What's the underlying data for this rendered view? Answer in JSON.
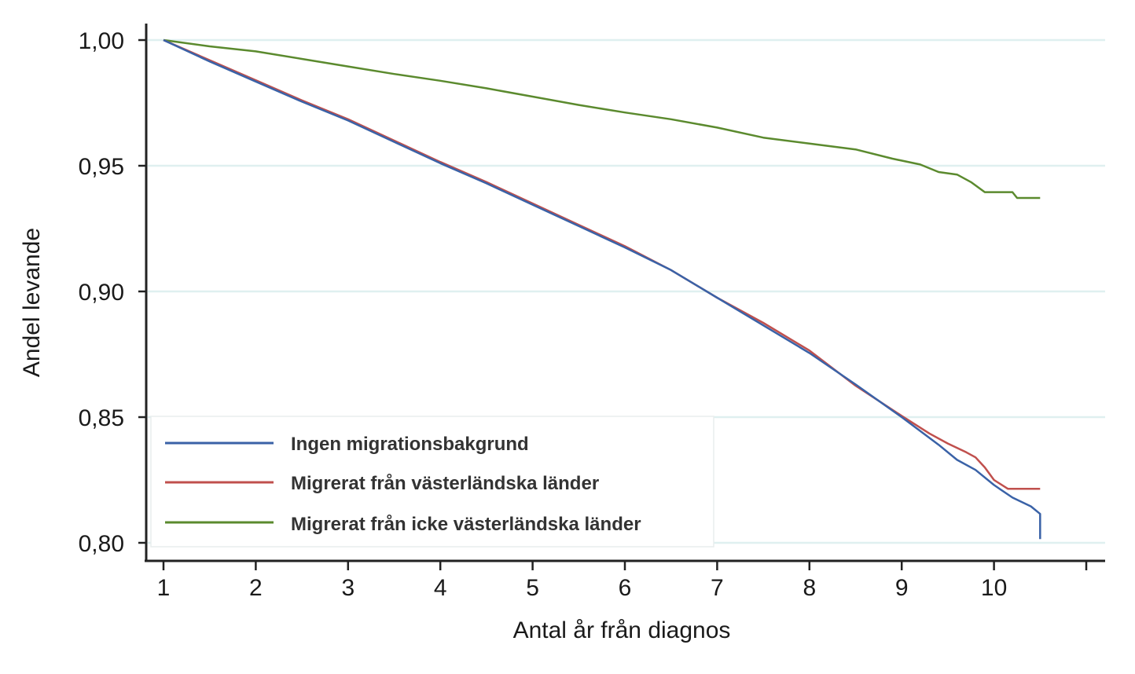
{
  "chart_data": {
    "type": "line",
    "title": "",
    "xlabel": "Antal år från diagnos",
    "ylabel": "Andel levande",
    "xlim": [
      0.95,
      11.2
    ],
    "ylim": [
      0.793,
      1.008
    ],
    "x_ticks": [
      1,
      2,
      3,
      4,
      5,
      6,
      7,
      8,
      9,
      10,
      11
    ],
    "x_tick_labels": [
      "1",
      "2",
      "3",
      "4",
      "5",
      "6",
      "7",
      "8",
      "9",
      "10",
      ""
    ],
    "y_ticks": [
      0.8,
      0.85,
      0.9,
      0.95,
      1.0
    ],
    "y_tick_labels": [
      "0,80",
      "0,85",
      "0,90",
      "0,95",
      "1,00"
    ],
    "grid": true,
    "legend_position": "bottom-left",
    "colors": {
      "Ingen migrationsbakgrund": "#3a62a7",
      "Migrerat från västerländska länder": "#c0504d",
      "Migrerat från icke västerländska länder": "#5b8a2e",
      "grid": "#dff0f0",
      "axis": "#222222"
    },
    "series": [
      {
        "name": "Ingen migrationsbakgrund",
        "x": [
          1.0,
          1.5,
          2.0,
          2.5,
          3.0,
          3.5,
          4.0,
          4.5,
          5.0,
          5.5,
          6.0,
          6.5,
          7.0,
          7.5,
          8.0,
          8.5,
          9.0,
          9.4,
          9.6,
          9.8,
          10.0,
          10.2,
          10.4,
          10.5,
          10.5
        ],
        "y": [
          1.0,
          0.9915,
          0.9835,
          0.9755,
          0.968,
          0.9595,
          0.951,
          0.943,
          0.9345,
          0.926,
          0.9175,
          0.9085,
          0.8975,
          0.8865,
          0.8755,
          0.863,
          0.85,
          0.839,
          0.833,
          0.829,
          0.823,
          0.818,
          0.8145,
          0.8115,
          0.8015
        ]
      },
      {
        "name": "Migrerat från västerländska länder",
        "x": [
          1.0,
          1.5,
          2.0,
          2.5,
          3.0,
          3.5,
          4.0,
          4.5,
          5.0,
          5.5,
          6.0,
          6.5,
          7.0,
          7.5,
          8.0,
          8.5,
          9.0,
          9.3,
          9.5,
          9.7,
          9.8,
          9.9,
          10.0,
          10.15,
          10.5
        ],
        "y": [
          1.0,
          0.992,
          0.984,
          0.976,
          0.9685,
          0.96,
          0.9515,
          0.9435,
          0.935,
          0.9265,
          0.918,
          0.9085,
          0.8975,
          0.8875,
          0.8765,
          0.8625,
          0.8505,
          0.8435,
          0.8395,
          0.836,
          0.834,
          0.83,
          0.825,
          0.8215,
          0.8215
        ]
      },
      {
        "name": "Migrerat från icke västerländska länder",
        "x": [
          1.0,
          1.5,
          2.0,
          2.5,
          3.0,
          3.5,
          4.0,
          4.5,
          5.0,
          5.5,
          6.0,
          6.5,
          7.0,
          7.5,
          8.0,
          8.5,
          8.9,
          9.2,
          9.4,
          9.6,
          9.75,
          9.9,
          10.2,
          10.25,
          10.5
        ],
        "y": [
          1.0,
          0.9975,
          0.9955,
          0.9925,
          0.9895,
          0.9865,
          0.9838,
          0.9808,
          0.9775,
          0.9742,
          0.9712,
          0.9685,
          0.9652,
          0.9612,
          0.9588,
          0.9565,
          0.9528,
          0.9505,
          0.9475,
          0.9465,
          0.9435,
          0.9395,
          0.9395,
          0.9372,
          0.9372
        ]
      }
    ]
  }
}
